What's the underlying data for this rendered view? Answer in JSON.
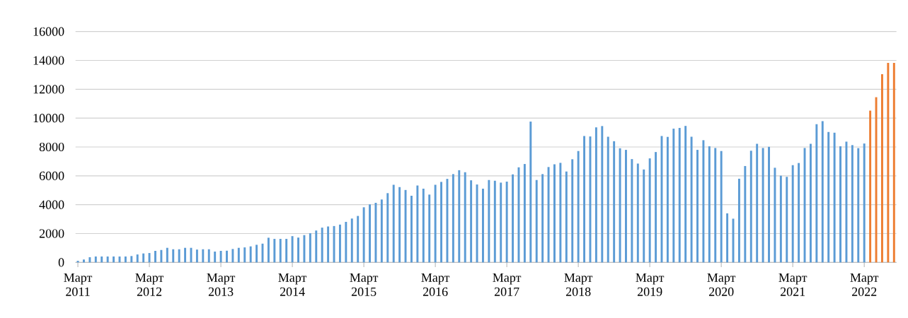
{
  "chart_data": {
    "type": "bar",
    "categories": [
      "Март 2011",
      null,
      null,
      null,
      null,
      null,
      null,
      null,
      null,
      null,
      null,
      null,
      "Март 2012",
      null,
      null,
      null,
      null,
      null,
      null,
      null,
      null,
      null,
      null,
      null,
      "Март 2013",
      null,
      null,
      null,
      null,
      null,
      null,
      null,
      null,
      null,
      null,
      null,
      "Март 2014",
      null,
      null,
      null,
      null,
      null,
      null,
      null,
      null,
      null,
      null,
      null,
      "Март 2015",
      null,
      null,
      null,
      null,
      null,
      null,
      null,
      null,
      null,
      null,
      null,
      "Март 2016",
      null,
      null,
      null,
      null,
      null,
      null,
      null,
      null,
      null,
      null,
      null,
      "Март 2017",
      null,
      null,
      null,
      null,
      null,
      null,
      null,
      null,
      null,
      null,
      null,
      "Март 2018",
      null,
      null,
      null,
      null,
      null,
      null,
      null,
      null,
      null,
      null,
      null,
      "Март 2019",
      null,
      null,
      null,
      null,
      null,
      null,
      null,
      null,
      null,
      null,
      null,
      "Март 2020",
      null,
      null,
      null,
      null,
      null,
      null,
      null,
      null,
      null,
      null,
      null,
      "Март 2021",
      null,
      null,
      null,
      null,
      null,
      null,
      null,
      null,
      null,
      null,
      null,
      "Март 2022",
      null,
      null,
      null,
      null,
      null
    ],
    "series": [
      {
        "color": "#5b9bd5",
        "values": [
          110,
          200,
          360,
          410,
          410,
          410,
          410,
          410,
          410,
          440,
          550,
          620,
          650,
          800,
          860,
          1010,
          910,
          910,
          1010,
          1010,
          890,
          910,
          910,
          750,
          800,
          810,
          930,
          1010,
          1040,
          1110,
          1220,
          1300,
          1710,
          1630,
          1630,
          1630,
          1820,
          1720,
          1890,
          2020,
          2210,
          2410,
          2490,
          2520,
          2620,
          2810,
          3040,
          3220,
          3820,
          4020,
          4130,
          4360,
          4800,
          5380,
          5220,
          5020,
          4620,
          5330,
          5110,
          4700,
          5380,
          5580,
          5790,
          6120,
          6390,
          6250,
          5690,
          5400,
          5110,
          5710,
          5660,
          5530,
          5600,
          6100,
          6590,
          6820,
          9760,
          5710,
          6120,
          6610,
          6800,
          6900,
          6300,
          7150,
          7720,
          8760,
          8730,
          9360,
          9450,
          8710,
          8400,
          7910,
          7800,
          7160,
          6850,
          6440,
          7210,
          7650,
          8760,
          8700,
          9270,
          9320,
          9460,
          8710,
          7800,
          8470,
          8050,
          7930,
          7720,
          3400,
          3030,
          5800,
          6680,
          7740,
          8220,
          7930,
          8010,
          6560,
          6010,
          5930,
          6740,
          6890,
          7930,
          8220,
          9580,
          9790,
          9040,
          8990,
          8050,
          8370,
          8130,
          7920,
          8240,
          null,
          null,
          null,
          null,
          null
        ]
      },
      {
        "color": "#ed7d31",
        "values": [
          null,
          null,
          null,
          null,
          null,
          null,
          null,
          null,
          null,
          null,
          null,
          null,
          null,
          null,
          null,
          null,
          null,
          null,
          null,
          null,
          null,
          null,
          null,
          null,
          null,
          null,
          null,
          null,
          null,
          null,
          null,
          null,
          null,
          null,
          null,
          null,
          null,
          null,
          null,
          null,
          null,
          null,
          null,
          null,
          null,
          null,
          null,
          null,
          null,
          null,
          null,
          null,
          null,
          null,
          null,
          null,
          null,
          null,
          null,
          null,
          null,
          null,
          null,
          null,
          null,
          null,
          null,
          null,
          null,
          null,
          null,
          null,
          null,
          null,
          null,
          null,
          null,
          null,
          null,
          null,
          null,
          null,
          null,
          null,
          null,
          null,
          null,
          null,
          null,
          null,
          null,
          null,
          null,
          null,
          null,
          null,
          null,
          null,
          null,
          null,
          null,
          null,
          null,
          null,
          null,
          null,
          null,
          null,
          null,
          null,
          null,
          null,
          null,
          null,
          null,
          null,
          null,
          null,
          null,
          null,
          null,
          null,
          null,
          null,
          null,
          null,
          null,
          null,
          null,
          null,
          null,
          null,
          null,
          10520,
          11450,
          13050,
          13830,
          13830
        ]
      }
    ],
    "ylim": [
      0,
      16000
    ],
    "yticks": [
      0,
      2000,
      4000,
      6000,
      8000,
      10000,
      12000,
      14000,
      16000
    ],
    "grid": "y"
  }
}
